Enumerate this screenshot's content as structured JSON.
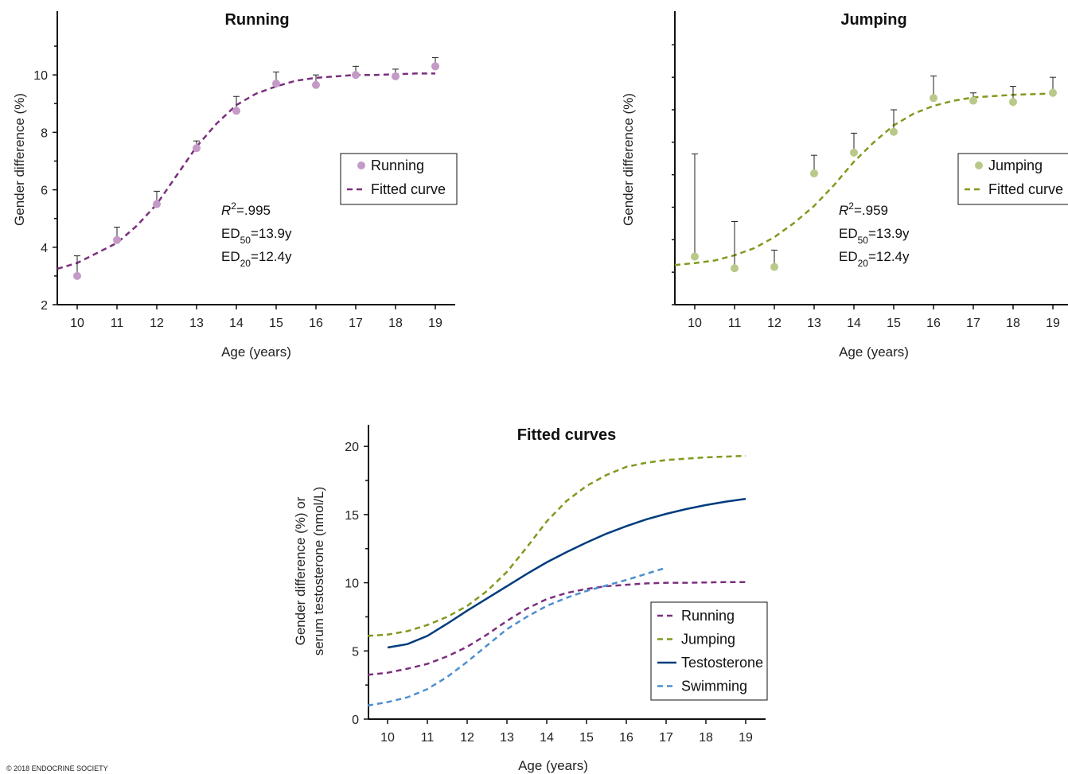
{
  "copyright": "© 2018 ENDOCRINE SOCIETY",
  "colors": {
    "running": "#7B2F7E",
    "running_point": "#C49AC7",
    "jumping": "#7F9A1E",
    "jumping_point": "#B8C98A",
    "testosterone": "#003C7D",
    "swimming": "#4D8FCF",
    "axis": "#111111"
  },
  "chart_data": [
    {
      "id": "running",
      "type": "scatter",
      "title": "Running",
      "xlabel": "Age (years)",
      "ylabel": "Gender difference (%)",
      "xlim": [
        9.5,
        19.5
      ],
      "ylim": [
        2,
        11.5
      ],
      "xticks": [
        10,
        11,
        12,
        13,
        14,
        15,
        16,
        17,
        18,
        19
      ],
      "yticks": [
        2,
        4,
        6,
        8,
        10
      ],
      "series": [
        {
          "name": "Running",
          "kind": "points",
          "x": [
            10,
            11,
            12,
            13,
            14,
            15,
            16,
            17,
            18,
            19
          ],
          "y": [
            3.0,
            4.25,
            5.5,
            7.45,
            8.75,
            9.7,
            9.65,
            10.0,
            9.95,
            10.3
          ],
          "error_upper": [
            3.7,
            4.7,
            5.95,
            7.7,
            9.25,
            10.1,
            10.0,
            10.3,
            10.2,
            10.6
          ]
        },
        {
          "name": "Fitted curve",
          "kind": "fit",
          "x": [
            9.5,
            10,
            10.5,
            11,
            11.5,
            12,
            12.5,
            13,
            13.5,
            14,
            14.5,
            15,
            15.5,
            16,
            16.5,
            17,
            17.5,
            18,
            18.5,
            19
          ],
          "y": [
            3.25,
            3.45,
            3.8,
            4.15,
            4.75,
            5.5,
            6.5,
            7.5,
            8.3,
            8.95,
            9.35,
            9.6,
            9.8,
            9.9,
            9.95,
            10.0,
            10.0,
            10.02,
            10.05,
            10.05
          ]
        }
      ],
      "legend": [
        "Running",
        "Fitted curve"
      ],
      "legend_position": "right",
      "annotation": {
        "r2_value": "=.995",
        "ed50_value": "=13.9y",
        "ed20_value": "=12.4y"
      }
    },
    {
      "id": "jumping",
      "type": "scatter",
      "title": "Jumping",
      "xlabel": "Age (years)",
      "ylabel": "Gender difference (%)",
      "xlim": [
        9.5,
        19.5
      ],
      "ylim": [
        3,
        24
      ],
      "xticks": [
        10,
        11,
        12,
        13,
        14,
        15,
        16,
        17,
        18,
        19
      ],
      "yticks": [
        5,
        10,
        15,
        20
      ],
      "series": [
        {
          "name": "Jumping",
          "kind": "points",
          "x": [
            10,
            11,
            12,
            13,
            14,
            15,
            16,
            17,
            18,
            19
          ],
          "y": [
            6.7,
            5.8,
            5.9,
            13.1,
            14.7,
            16.3,
            18.9,
            18.7,
            18.6,
            19.3
          ],
          "error_upper": [
            14.6,
            9.4,
            7.2,
            14.5,
            16.2,
            18.0,
            20.6,
            19.3,
            19.8,
            20.5
          ]
        },
        {
          "name": "Fitted curve",
          "kind": "fit",
          "x": [
            9.5,
            10,
            10.5,
            11,
            11.5,
            12,
            12.5,
            13,
            13.5,
            14,
            14.5,
            15,
            15.5,
            16,
            16.5,
            17,
            17.5,
            18,
            18.5,
            19
          ],
          "y": [
            6.05,
            6.2,
            6.4,
            6.8,
            7.35,
            8.2,
            9.3,
            10.6,
            12.2,
            14.0,
            15.5,
            16.8,
            17.7,
            18.3,
            18.7,
            18.95,
            19.05,
            19.15,
            19.2,
            19.25
          ]
        }
      ],
      "legend": [
        "Jumping",
        "Fitted curve"
      ],
      "legend_position": "right",
      "annotation": {
        "r2_value": "=.959",
        "ed50_value": "=13.9y",
        "ed20_value": "=12.4y"
      }
    },
    {
      "id": "fitted",
      "type": "line",
      "title": "Fitted curves",
      "xlabel": "Age (years)",
      "ylabel_line1": "Gender difference (%) or",
      "ylabel_line2": "serum testosterone (nmol/L)",
      "xlim": [
        9.5,
        20
      ],
      "ylim": [
        0,
        21
      ],
      "xticks": [
        10,
        11,
        12,
        13,
        14,
        15,
        16,
        17,
        18,
        19
      ],
      "yticks": [
        0,
        5,
        10,
        15,
        20
      ],
      "series": [
        {
          "name": "Running",
          "dash": true,
          "x": [
            9.5,
            10,
            10.5,
            11,
            11.5,
            12,
            12.5,
            13,
            13.5,
            14,
            14.5,
            15,
            15.5,
            16,
            16.5,
            17,
            17.5,
            18,
            18.5,
            19
          ],
          "y": [
            3.25,
            3.4,
            3.7,
            4.05,
            4.6,
            5.3,
            6.2,
            7.2,
            8.1,
            8.8,
            9.25,
            9.55,
            9.75,
            9.85,
            9.95,
            10.0,
            10.0,
            10.02,
            10.05,
            10.05
          ]
        },
        {
          "name": "Jumping",
          "dash": true,
          "x": [
            9.5,
            10,
            10.5,
            11,
            11.5,
            12,
            12.5,
            13,
            13.5,
            14,
            14.5,
            15,
            15.5,
            16,
            16.5,
            17,
            17.5,
            18,
            18.5,
            19
          ],
          "y": [
            6.1,
            6.2,
            6.45,
            6.9,
            7.5,
            8.3,
            9.4,
            10.8,
            12.6,
            14.5,
            16.0,
            17.1,
            17.9,
            18.5,
            18.8,
            19.0,
            19.1,
            19.2,
            19.25,
            19.3
          ]
        },
        {
          "name": "Testosterone",
          "dash": false,
          "x": [
            10,
            10.5,
            11,
            11.5,
            12,
            12.5,
            13,
            13.5,
            14,
            14.5,
            15,
            15.5,
            16,
            16.5,
            17,
            17.5,
            18,
            18.5,
            19
          ],
          "y": [
            5.25,
            5.5,
            6.1,
            7.0,
            7.95,
            8.85,
            9.75,
            10.65,
            11.5,
            12.25,
            12.95,
            13.6,
            14.15,
            14.65,
            15.05,
            15.4,
            15.7,
            15.95,
            16.15
          ]
        },
        {
          "name": "Swimming",
          "dash": true,
          "x": [
            9.5,
            10,
            10.5,
            11,
            11.5,
            12,
            12.5,
            13,
            13.5,
            14,
            14.5,
            15,
            15.5,
            16,
            16.5,
            17
          ],
          "y": [
            1.0,
            1.25,
            1.6,
            2.2,
            3.1,
            4.2,
            5.4,
            6.6,
            7.5,
            8.3,
            8.9,
            9.4,
            9.8,
            10.2,
            10.65,
            11.1
          ]
        }
      ],
      "legend": [
        "Running",
        "Jumping",
        "Testosterone",
        "Swimming"
      ],
      "legend_position": "bottom-right"
    }
  ]
}
